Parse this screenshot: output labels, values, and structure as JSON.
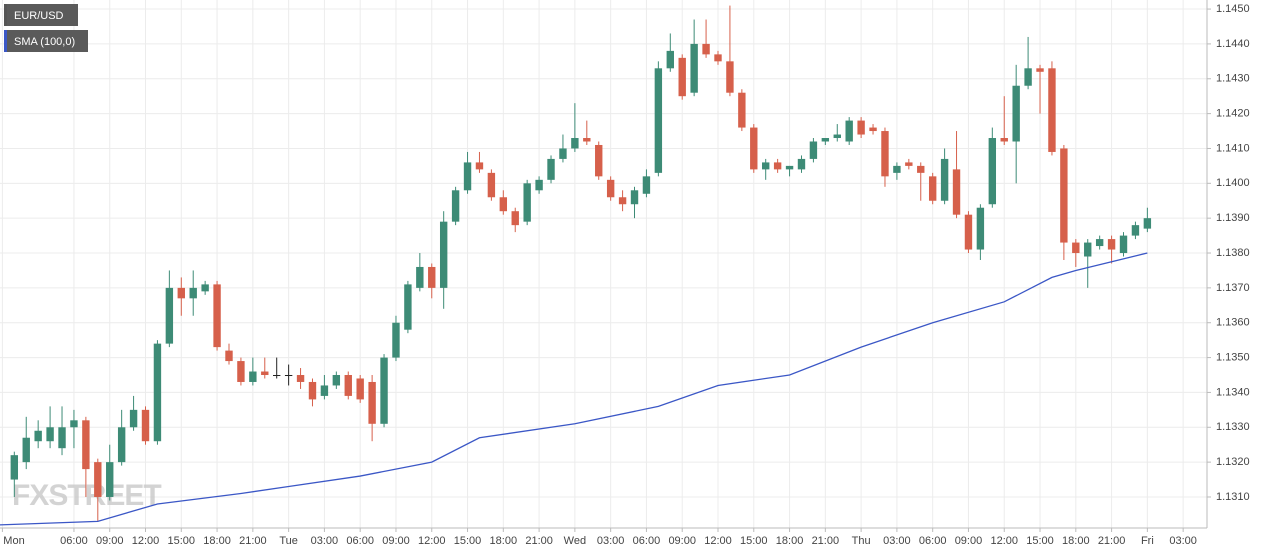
{
  "chart_data": {
    "type": "candlestick",
    "xlim": [
      -0.2,
      101
    ],
    "ylim": [
      1.13011,
      1.14526
    ],
    "grid": true,
    "watermark": "FXSTREET",
    "yticks": [
      {
        "value": 1.131,
        "label": "1.1310"
      },
      {
        "value": 1.132,
        "label": "1.1320"
      },
      {
        "value": 1.133,
        "label": "1.1330"
      },
      {
        "value": 1.134,
        "label": "1.1340"
      },
      {
        "value": 1.135,
        "label": "1.1350"
      },
      {
        "value": 1.136,
        "label": "1.1360"
      },
      {
        "value": 1.137,
        "label": "1.1370"
      },
      {
        "value": 1.138,
        "label": "1.1380"
      },
      {
        "value": 1.139,
        "label": "1.1390"
      },
      {
        "value": 1.14,
        "label": "1.1400"
      },
      {
        "value": 1.141,
        "label": "1.1410"
      },
      {
        "value": 1.142,
        "label": "1.1420"
      },
      {
        "value": 1.143,
        "label": "1.1430"
      },
      {
        "value": 1.144,
        "label": "1.1440"
      },
      {
        "value": 1.145,
        "label": "1.1450"
      }
    ],
    "xticks": [
      {
        "value": 0,
        "label": "Mon"
      },
      {
        "value": 6,
        "label": "06:00"
      },
      {
        "value": 9,
        "label": "09:00"
      },
      {
        "value": 12,
        "label": "12:00"
      },
      {
        "value": 15,
        "label": "15:00"
      },
      {
        "value": 18,
        "label": "18:00"
      },
      {
        "value": 21,
        "label": "21:00"
      },
      {
        "value": 24,
        "label": "Tue"
      },
      {
        "value": 27,
        "label": "03:00"
      },
      {
        "value": 30,
        "label": "06:00"
      },
      {
        "value": 33,
        "label": "09:00"
      },
      {
        "value": 36,
        "label": "12:00"
      },
      {
        "value": 39,
        "label": "15:00"
      },
      {
        "value": 42,
        "label": "18:00"
      },
      {
        "value": 45,
        "label": "21:00"
      },
      {
        "value": 48,
        "label": "Wed"
      },
      {
        "value": 51,
        "label": "03:00"
      },
      {
        "value": 54,
        "label": "06:00"
      },
      {
        "value": 57,
        "label": "09:00"
      },
      {
        "value": 60,
        "label": "12:00"
      },
      {
        "value": 63,
        "label": "15:00"
      },
      {
        "value": 66,
        "label": "18:00"
      },
      {
        "value": 69,
        "label": "21:00"
      },
      {
        "value": 72,
        "label": "Thu"
      },
      {
        "value": 75,
        "label": "03:00"
      },
      {
        "value": 78,
        "label": "06:00"
      },
      {
        "value": 81,
        "label": "09:00"
      },
      {
        "value": 84,
        "label": "12:00"
      },
      {
        "value": 87,
        "label": "15:00"
      },
      {
        "value": 90,
        "label": "18:00"
      },
      {
        "value": 93,
        "label": "21:00"
      },
      {
        "value": 96,
        "label": "Fri"
      },
      {
        "value": 99,
        "label": "03:00"
      }
    ],
    "up_color": "#3d8b76",
    "down_color": "#d6604b",
    "series": [
      {
        "name": "EUR/USD",
        "color": "#555555",
        "x": [
          1,
          2,
          3,
          4,
          5,
          6,
          7,
          8,
          9,
          10,
          11,
          12,
          13,
          14,
          15,
          16,
          17,
          18,
          19,
          20,
          21,
          22,
          23,
          24,
          25,
          26,
          27,
          28,
          29,
          30,
          31,
          32,
          33,
          34,
          35,
          36,
          37,
          38,
          39,
          40,
          41,
          42,
          43,
          44,
          45,
          46,
          47,
          48,
          49,
          50,
          51,
          52,
          53,
          54,
          55,
          56,
          57,
          58,
          59,
          60,
          61,
          62,
          63,
          64,
          65,
          66,
          67,
          68,
          69,
          70,
          71,
          72,
          73,
          74,
          75,
          76,
          77,
          78,
          79,
          80,
          81,
          82,
          83,
          84,
          85,
          86,
          87,
          88,
          89,
          90,
          91,
          92,
          93,
          94,
          95,
          96
        ],
        "open": [
          1.1315,
          1.132,
          1.1326,
          1.1326,
          1.1324,
          1.133,
          1.1332,
          1.132,
          1.131,
          1.132,
          1.133,
          1.1335,
          1.1326,
          1.1354,
          1.137,
          1.1367,
          1.1369,
          1.1371,
          1.1352,
          1.1349,
          1.1343,
          1.1346,
          1.1345,
          1.1345,
          1.1345,
          1.1343,
          1.1339,
          1.1342,
          1.1345,
          1.1344,
          1.1343,
          1.1331,
          1.135,
          1.1358,
          1.137,
          1.1376,
          1.137,
          1.1389,
          1.1398,
          1.1406,
          1.1403,
          1.1396,
          1.1392,
          1.1389,
          1.1398,
          1.1401,
          1.1407,
          1.141,
          1.1413,
          1.1411,
          1.1401,
          1.1396,
          1.1394,
          1.1397,
          1.1403,
          1.1433,
          1.1436,
          1.1426,
          1.144,
          1.1437,
          1.1435,
          1.1426,
          1.1416,
          1.1404,
          1.1406,
          1.1404,
          1.1404,
          1.1407,
          1.1412,
          1.1413,
          1.1412,
          1.1418,
          1.1416,
          1.1415,
          1.1403,
          1.1406,
          1.1405,
          1.1402,
          1.1395,
          1.1404,
          1.1391,
          1.1381,
          1.1394,
          1.1413,
          1.1412,
          1.1428,
          1.1433,
          1.1433,
          1.141,
          1.1383,
          1.1379,
          1.1382,
          1.1384,
          1.138,
          1.1385,
          1.1387
        ],
        "high": [
          1.1323,
          1.1333,
          1.1332,
          1.1336,
          1.1336,
          1.1335,
          1.1333,
          1.1321,
          1.1325,
          1.1335,
          1.1339,
          1.1336,
          1.1355,
          1.1375,
          1.1373,
          1.1375,
          1.1372,
          1.1372,
          1.1354,
          1.135,
          1.135,
          1.135,
          1.135,
          1.1348,
          1.1347,
          1.1344,
          1.1345,
          1.1346,
          1.1346,
          1.1345,
          1.1345,
          1.1351,
          1.1362,
          1.1372,
          1.138,
          1.1377,
          1.1392,
          1.1399,
          1.1409,
          1.1409,
          1.1404,
          1.1398,
          1.1393,
          1.1401,
          1.1402,
          1.1408,
          1.1414,
          1.1423,
          1.1418,
          1.1412,
          1.1402,
          1.1398,
          1.1399,
          1.1404,
          1.1435,
          1.1443,
          1.1437,
          1.1447,
          1.1447,
          1.1438,
          1.1451,
          1.1427,
          1.1417,
          1.1407,
          1.1407,
          1.1405,
          1.1408,
          1.1413,
          1.1413,
          1.1417,
          1.1419,
          1.1419,
          1.1417,
          1.1416,
          1.1406,
          1.1407,
          1.1406,
          1.1403,
          1.141,
          1.1415,
          1.1392,
          1.1394,
          1.1416,
          1.1425,
          1.1434,
          1.1442,
          1.1434,
          1.1435,
          1.1411,
          1.1384,
          1.1384,
          1.1385,
          1.1385,
          1.1386,
          1.1389,
          1.1393
        ],
        "low": [
          1.131,
          1.1318,
          1.1324,
          1.1324,
          1.1322,
          1.1324,
          1.131,
          1.1303,
          1.1309,
          1.1319,
          1.1329,
          1.1325,
          1.1325,
          1.1353,
          1.1362,
          1.1362,
          1.1368,
          1.1352,
          1.1348,
          1.1342,
          1.1342,
          1.1344,
          1.1344,
          1.1342,
          1.1341,
          1.1336,
          1.1338,
          1.1341,
          1.1338,
          1.1337,
          1.1326,
          1.133,
          1.1349,
          1.1357,
          1.1369,
          1.1367,
          1.1364,
          1.1388,
          1.1397,
          1.1403,
          1.1395,
          1.1391,
          1.1386,
          1.1388,
          1.1397,
          1.14,
          1.1406,
          1.1409,
          1.1411,
          1.1401,
          1.1395,
          1.1392,
          1.139,
          1.1396,
          1.1402,
          1.1432,
          1.1424,
          1.1425,
          1.1436,
          1.1434,
          1.1425,
          1.1415,
          1.1403,
          1.1401,
          1.1403,
          1.1402,
          1.1403,
          1.1406,
          1.1411,
          1.1412,
          1.1411,
          1.1413,
          1.1414,
          1.1399,
          1.1401,
          1.1404,
          1.1395,
          1.1394,
          1.1394,
          1.139,
          1.138,
          1.1378,
          1.1393,
          1.1411,
          1.14,
          1.1427,
          1.142,
          1.1408,
          1.1378,
          1.1376,
          1.137,
          1.1381,
          1.1377,
          1.1379,
          1.1384,
          1.1386
        ],
        "close": [
          1.1322,
          1.1327,
          1.1329,
          1.133,
          1.133,
          1.1332,
          1.1318,
          1.131,
          1.132,
          1.133,
          1.1335,
          1.1326,
          1.1354,
          1.137,
          1.1367,
          1.137,
          1.1371,
          1.1353,
          1.1349,
          1.1343,
          1.1346,
          1.1345,
          1.1345,
          1.1345,
          1.1343,
          1.1338,
          1.1342,
          1.1345,
          1.1339,
          1.1338,
          1.1331,
          1.135,
          1.136,
          1.1371,
          1.1376,
          1.137,
          1.1389,
          1.1398,
          1.1406,
          1.1404,
          1.1396,
          1.1392,
          1.1388,
          1.14,
          1.1401,
          1.1407,
          1.141,
          1.1413,
          1.1412,
          1.1402,
          1.1396,
          1.1394,
          1.1398,
          1.1402,
          1.1433,
          1.1438,
          1.1425,
          1.144,
          1.1437,
          1.1435,
          1.1426,
          1.1416,
          1.1404,
          1.1406,
          1.1404,
          1.1405,
          1.1407,
          1.1412,
          1.1413,
          1.1414,
          1.1418,
          1.1414,
          1.1415,
          1.1402,
          1.1405,
          1.1405,
          1.1403,
          1.1395,
          1.1407,
          1.1391,
          1.1381,
          1.1393,
          1.1413,
          1.1412,
          1.1428,
          1.1433,
          1.1432,
          1.1409,
          1.1383,
          1.138,
          1.1383,
          1.1384,
          1.1381,
          1.1385,
          1.1388,
          1.139
        ]
      },
      {
        "name": "SMA (100,0)",
        "color": "#3b57c6",
        "x": [
          -0.2,
          8,
          13,
          20,
          24,
          30,
          36,
          40,
          48,
          55,
          60,
          66,
          72,
          78,
          84,
          88,
          90,
          96
        ],
        "values": [
          1.1302,
          1.1303,
          1.1308,
          1.1311,
          1.1313,
          1.1316,
          1.132,
          1.1327,
          1.1331,
          1.1336,
          1.1342,
          1.1345,
          1.1353,
          1.136,
          1.1366,
          1.1373,
          1.1375,
          1.138
        ]
      }
    ]
  }
}
